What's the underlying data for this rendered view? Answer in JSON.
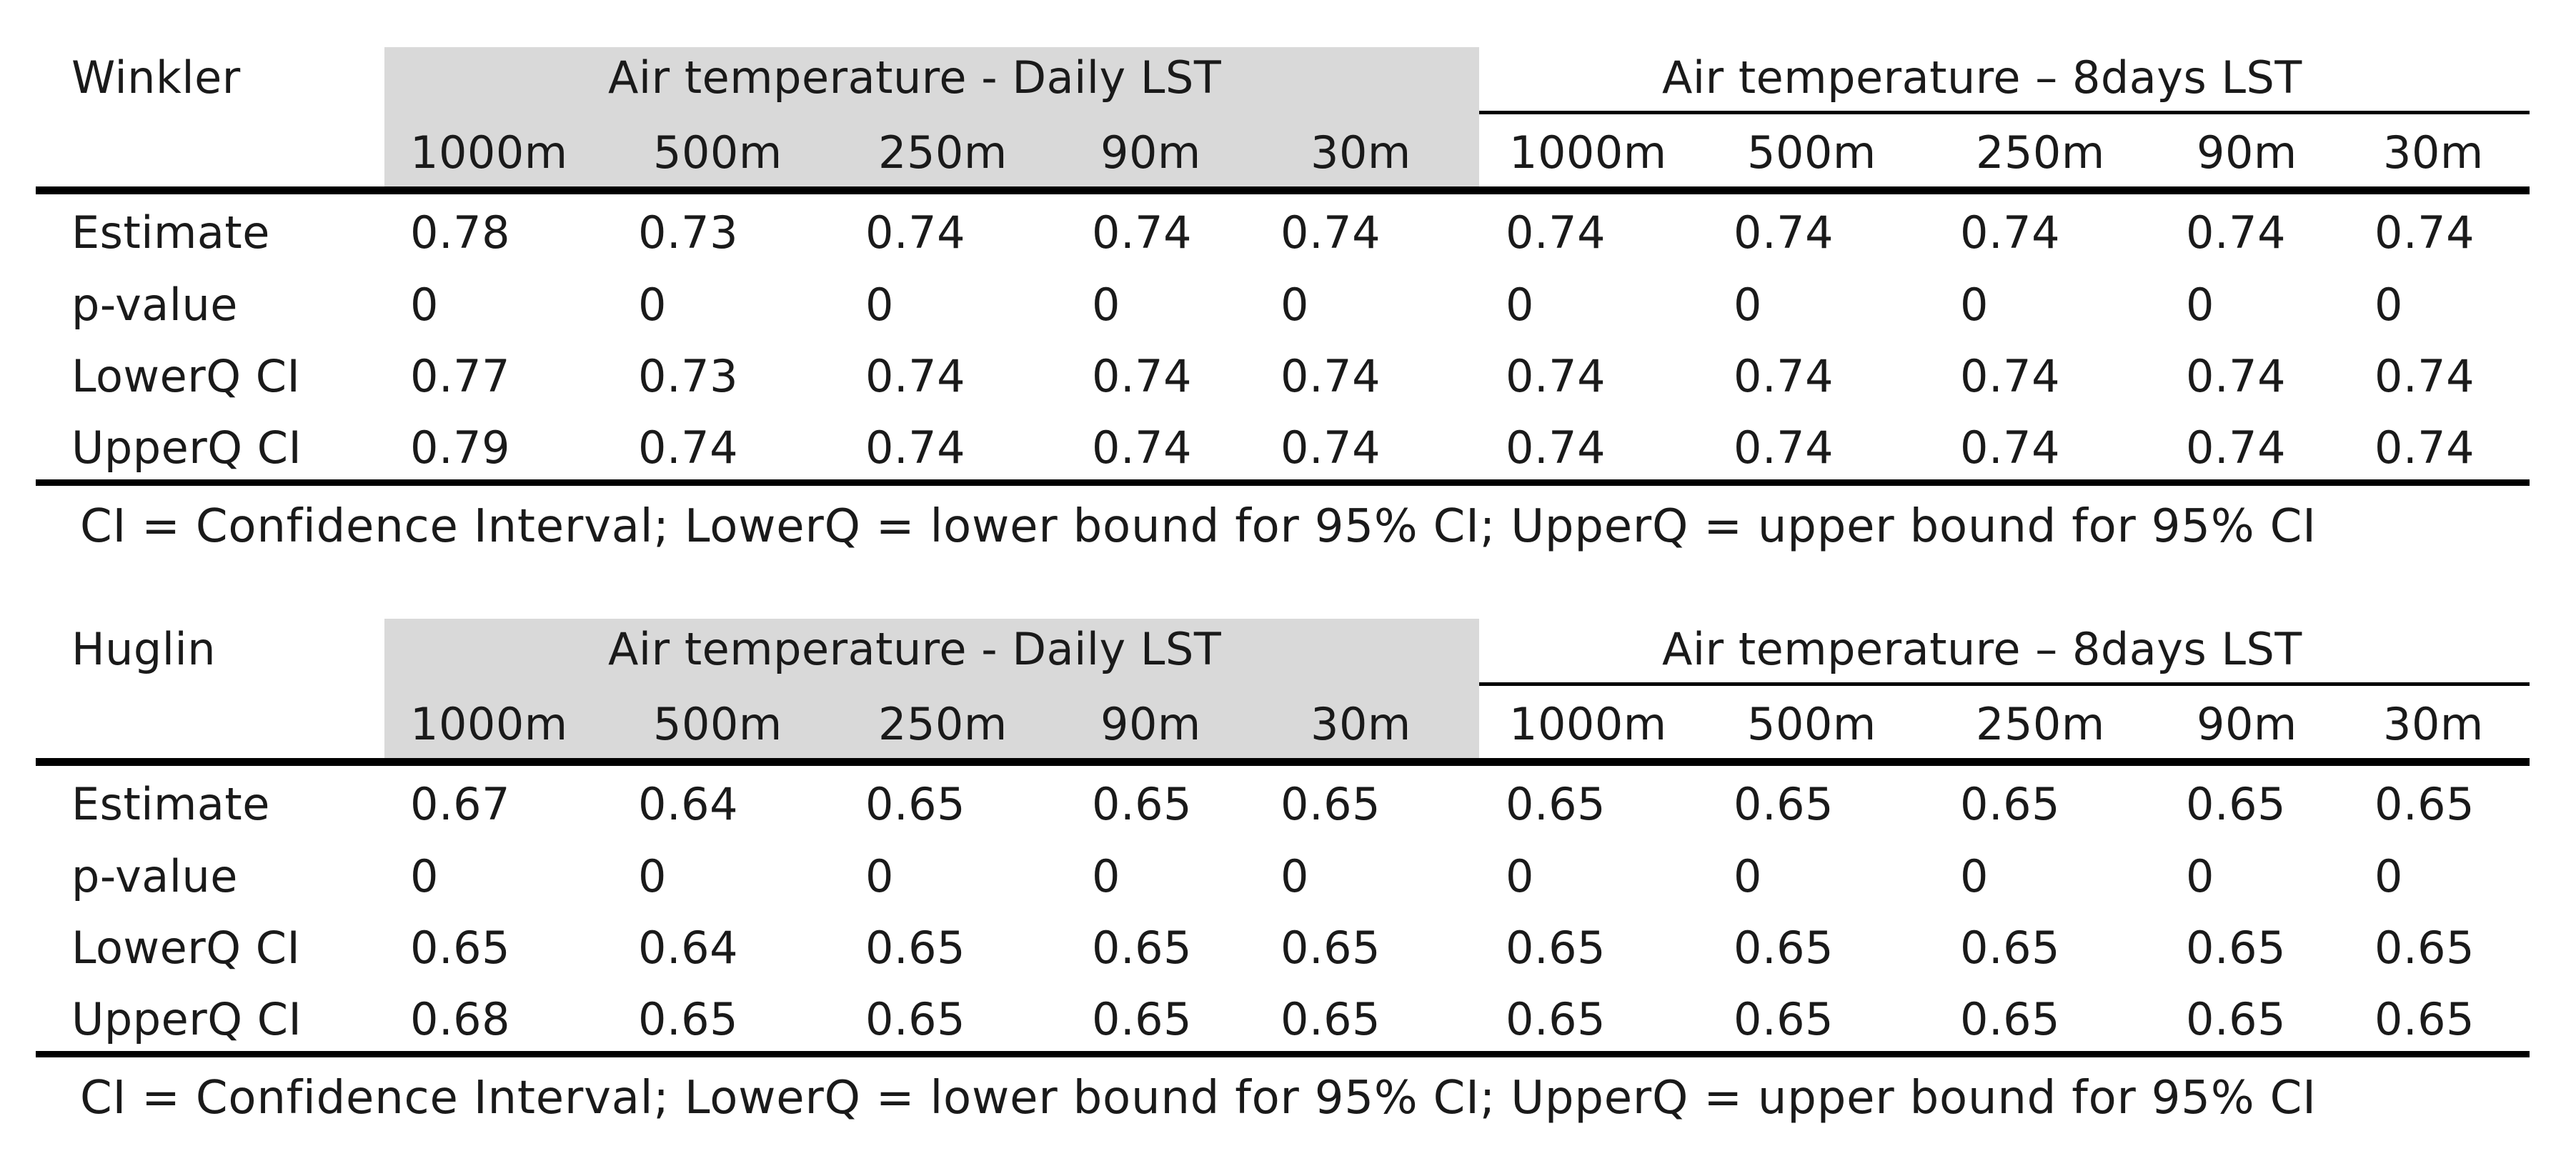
{
  "tables": [
    {
      "index": "Winkler",
      "group_headers": [
        "Air temperature - Daily LST",
        "Air temperature – 8days  LST"
      ],
      "resolutions": [
        "1000m",
        "500m",
        "250m",
        "90m",
        "30m",
        "1000m",
        "500m",
        "250m",
        "90m",
        "30m"
      ],
      "rows": [
        {
          "label": "Estimate",
          "values": [
            "0.78",
            "0.73",
            "0.74",
            "0.74",
            "0.74",
            "0.74",
            "0.74",
            "0.74",
            "0.74",
            "0.74"
          ]
        },
        {
          "label": "p-value",
          "values": [
            "0",
            "0",
            "0",
            "0",
            "0",
            "0",
            "0",
            "0",
            "0",
            "0"
          ]
        },
        {
          "label": "LowerQ CI",
          "values": [
            "0.77",
            "0.73",
            "0.74",
            "0.74",
            "0.74",
            "0.74",
            "0.74",
            "0.74",
            "0.74",
            "0.74"
          ]
        },
        {
          "label": "UpperQ CI",
          "values": [
            "0.79",
            "0.74",
            "0.74",
            "0.74",
            "0.74",
            "0.74",
            "0.74",
            "0.74",
            "0.74",
            "0.74"
          ]
        }
      ],
      "footnote": "CI = Confidence Interval; LowerQ = lower bound for 95% CI; UpperQ = upper bound for 95% CI"
    },
    {
      "index": "Huglin",
      "group_headers": [
        "Air temperature - Daily LST",
        "Air temperature – 8days  LST"
      ],
      "resolutions": [
        "1000m",
        "500m",
        "250m",
        "90m",
        "30m",
        "1000m",
        "500m",
        "250m",
        "90m",
        "30m"
      ],
      "rows": [
        {
          "label": "Estimate",
          "values": [
            "0.67",
            "0.64",
            "0.65",
            "0.65",
            "0.65",
            "0.65",
            "0.65",
            "0.65",
            "0.65",
            "0.65"
          ]
        },
        {
          "label": "p-value",
          "values": [
            "0",
            "0",
            "0",
            "0",
            "0",
            "0",
            "0",
            "0",
            "0",
            "0"
          ]
        },
        {
          "label": "LowerQ CI",
          "values": [
            "0.65",
            "0.64",
            "0.65",
            "0.65",
            "0.65",
            "0.65",
            "0.65",
            "0.65",
            "0.65",
            "0.65"
          ]
        },
        {
          "label": "UpperQ CI",
          "values": [
            "0.68",
            "0.65",
            "0.65",
            "0.65",
            "0.65",
            "0.65",
            "0.65",
            "0.65",
            "0.65",
            "0.65"
          ]
        }
      ],
      "footnote": "CI = Confidence Interval; LowerQ = lower bound for 95% CI; UpperQ = upper bound for 95% CI"
    }
  ]
}
